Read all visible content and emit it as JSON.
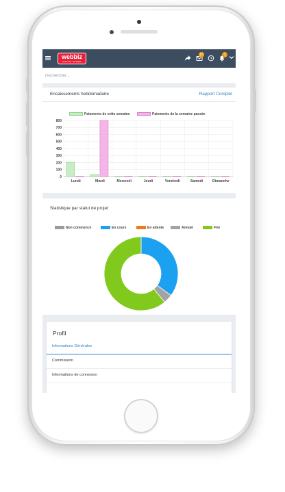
{
  "app": {
    "logo": {
      "name": "webbiz",
      "tagline": "DIGITAL POWER"
    },
    "search_placeholder": "Rechercher...",
    "topbar": {
      "icons": [
        "menu-icon",
        "share-icon",
        "mail-icon",
        "clock-icon",
        "bell-icon",
        "chevron-down-icon"
      ],
      "mail_badge": "13",
      "bell_badge": "1"
    }
  },
  "weekly": {
    "title": "Encaissements hebdomadaire",
    "link": "Rapport Complet"
  },
  "project_status": {
    "title": "Statistique par statut de projet"
  },
  "profile": {
    "title": "Profil",
    "items": [
      "Informations Générales",
      "Commission",
      "Informations de connexion"
    ]
  },
  "colors": {
    "topbar": "#3d4d60",
    "logo": "#e7213a",
    "accent": "#2a7fc1",
    "this_week": "#c8ecc4",
    "last_week": "#f4b6e8",
    "not_started": "#9b9b9b",
    "in_progress": "#1ba1ef",
    "pending": "#f07b1a",
    "cancelled": "#a3a3a3",
    "done": "#82c91e"
  },
  "chart_data": [
    {
      "type": "bar",
      "categories": [
        "Lundi",
        "Mardi",
        "Mercredi",
        "Jeudi",
        "Vendredi",
        "Samedi",
        "Dimanche"
      ],
      "series": [
        {
          "name": "Paiements de cette semaine",
          "values": [
            205,
            30,
            0,
            0,
            0,
            0,
            0
          ]
        },
        {
          "name": "Paiements de la semaine passée",
          "values": [
            0,
            800,
            0,
            0,
            0,
            0,
            0
          ]
        }
      ],
      "ylim": [
        0,
        800
      ],
      "yticks": [
        0,
        100,
        200,
        300,
        400,
        500,
        600,
        700,
        800
      ],
      "grid": true,
      "legend": "top"
    },
    {
      "type": "pie",
      "donut": true,
      "labels": [
        "Non commencé",
        "En cours",
        "En attente",
        "Annulé",
        "Fini"
      ],
      "values": [
        0,
        35,
        0,
        4,
        61
      ],
      "legend": "top"
    }
  ]
}
